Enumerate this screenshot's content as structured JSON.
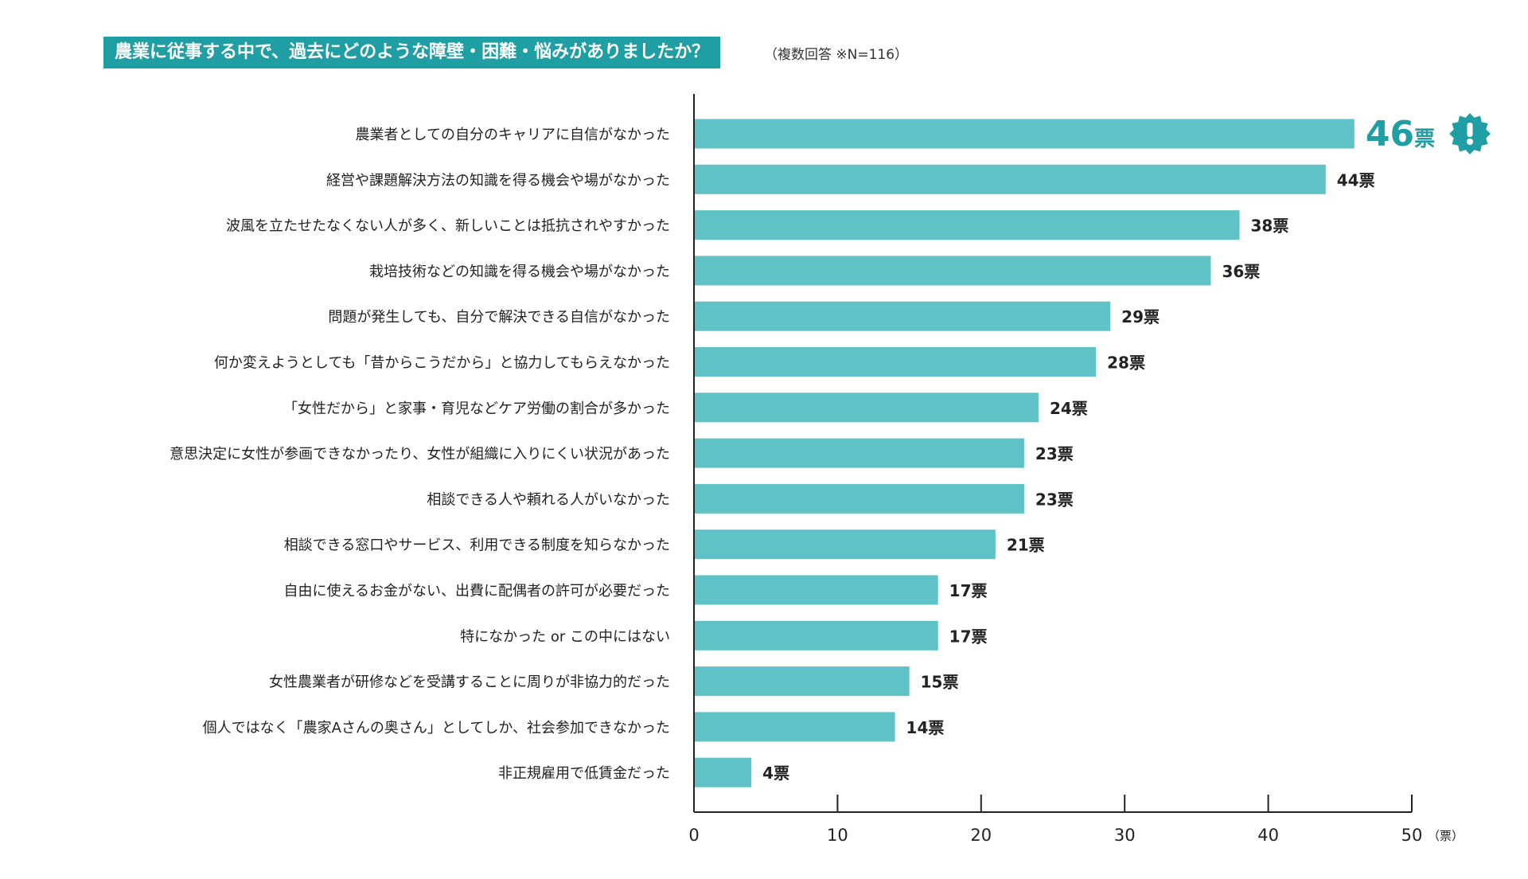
{
  "colors": {
    "bar": "#5ec2c6",
    "accent": "#1f9fa4",
    "axis": "#222222"
  },
  "chart_data": {
    "type": "bar",
    "orientation": "horizontal",
    "title": "農業に従事する中で、過去にどのような障壁・困難・悩みがありましたか？",
    "subtitle": "（複数回答 ※N=116）",
    "xlabel": "（票）",
    "xlim": [
      0,
      50
    ],
    "xticks": [
      0,
      10,
      20,
      30,
      40,
      50
    ],
    "value_suffix": "票",
    "highlight_icon": "exclamation-badge-icon",
    "categories": [
      "農業者としての自分のキャリアに自信がなかった",
      "経営や課題解決方法の知識を得る機会や場がなかった",
      "波風を立たせたなくない人が多く、新しいことは抵抗されやすかった",
      "栽培技術などの知識を得る機会や場がなかった",
      "問題が発生しても、自分で解決できる自信がなかった",
      "何か変えようとしても「昔からこうだから」と協力してもらえなかった",
      "「女性だから」と家事・育児などケア労働の割合が多かった",
      "意思決定に女性が参画できなかったり、女性が組織に入りにくい状況があった",
      "相談できる人や頼れる人がいなかった",
      "相談できる窓口やサービス、利用できる制度を知らなかった",
      "自由に使えるお金がない、出費に配偶者の許可が必要だった",
      "特になかった or この中にはない",
      "女性農業者が研修などを受講することに周りが非協力的だった",
      "個人ではなく「農家Aさんの奥さん」としてしか、社会参加できなかった",
      "非正規雇用で低賃金だった"
    ],
    "values": [
      46,
      44,
      38,
      36,
      29,
      28,
      24,
      23,
      23,
      21,
      17,
      17,
      15,
      14,
      4
    ]
  }
}
